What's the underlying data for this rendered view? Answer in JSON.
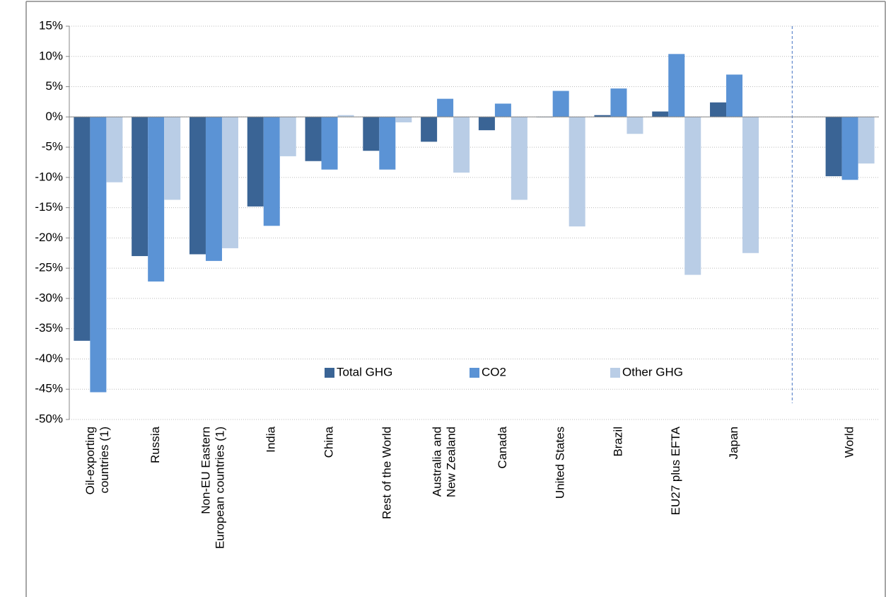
{
  "chart_data": {
    "type": "bar",
    "categories": [
      "Oil-exporting\ncountries (1)",
      "Russia",
      "Non-EU Eastern\nEuropean countries (1)",
      "India",
      "China",
      "Rest of the World",
      "Australia and\nNew Zealand",
      "Canada",
      "United States",
      "Brazil",
      "EU27 plus EFTA",
      "Japan",
      null,
      "World"
    ],
    "series": [
      {
        "name": "Total GHG",
        "color": "#3a6495",
        "values": [
          -37,
          -23,
          -22.7,
          -14.8,
          -7.3,
          -5.6,
          -4.1,
          -2.2,
          0,
          0.3,
          0.9,
          2.4,
          null,
          -9.8
        ]
      },
      {
        "name": "CO2",
        "color": "#5b93d5",
        "values": [
          -45.5,
          -27.2,
          -23.8,
          -18,
          -8.7,
          -8.7,
          3,
          2.2,
          4.3,
          4.7,
          10.4,
          7,
          null,
          -10.4
        ]
      },
      {
        "name": "Other GHG",
        "color": "#b9cde6",
        "values": [
          -10.8,
          -13.7,
          -21.7,
          -6.5,
          0.3,
          -0.9,
          -9.2,
          -13.7,
          -18.1,
          -2.8,
          -26.1,
          -22.5,
          null,
          -7.7
        ]
      }
    ],
    "ylim": [
      -50,
      15
    ],
    "yticks": [
      {
        "value": -50,
        "label": "-50%"
      },
      {
        "value": -45,
        "label": "-45%"
      },
      {
        "value": -40,
        "label": "-40%"
      },
      {
        "value": -35,
        "label": "-35%"
      },
      {
        "value": -30,
        "label": "-30%"
      },
      {
        "value": -25,
        "label": "-25%"
      },
      {
        "value": -20,
        "label": "-20%"
      },
      {
        "value": -15,
        "label": "-15%"
      },
      {
        "value": -10,
        "label": "-10%"
      },
      {
        "value": -5,
        "label": "-5%"
      },
      {
        "value": 0,
        "label": "0%"
      },
      {
        "value": 5,
        "label": "5%"
      },
      {
        "value": 10,
        "label": "10%"
      },
      {
        "value": 15,
        "label": "15%"
      }
    ],
    "grid": true,
    "legend": "lower center"
  }
}
